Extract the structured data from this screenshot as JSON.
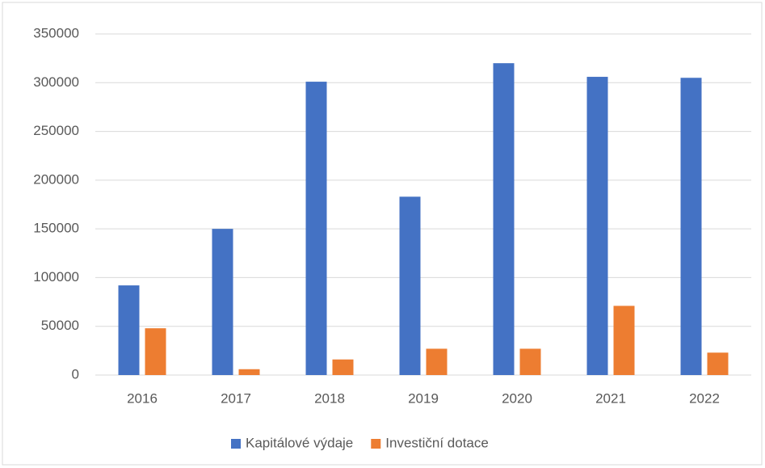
{
  "chart_data": {
    "type": "bar",
    "categories": [
      "2016",
      "2017",
      "2018",
      "2019",
      "2020",
      "2021",
      "2022"
    ],
    "series": [
      {
        "name": "Kapitálové výdaje",
        "color": "#4472c4",
        "values": [
          92000,
          150000,
          301000,
          183000,
          320000,
          306000,
          305000
        ]
      },
      {
        "name": "Investiční dotace",
        "color": "#ed7d31",
        "values": [
          48000,
          6000,
          16000,
          27000,
          27000,
          71000,
          23000
        ]
      }
    ],
    "ylim": [
      0,
      350000
    ],
    "yticks": [
      0,
      50000,
      100000,
      150000,
      200000,
      250000,
      300000,
      350000
    ],
    "grid": true,
    "legend": "bottom"
  }
}
